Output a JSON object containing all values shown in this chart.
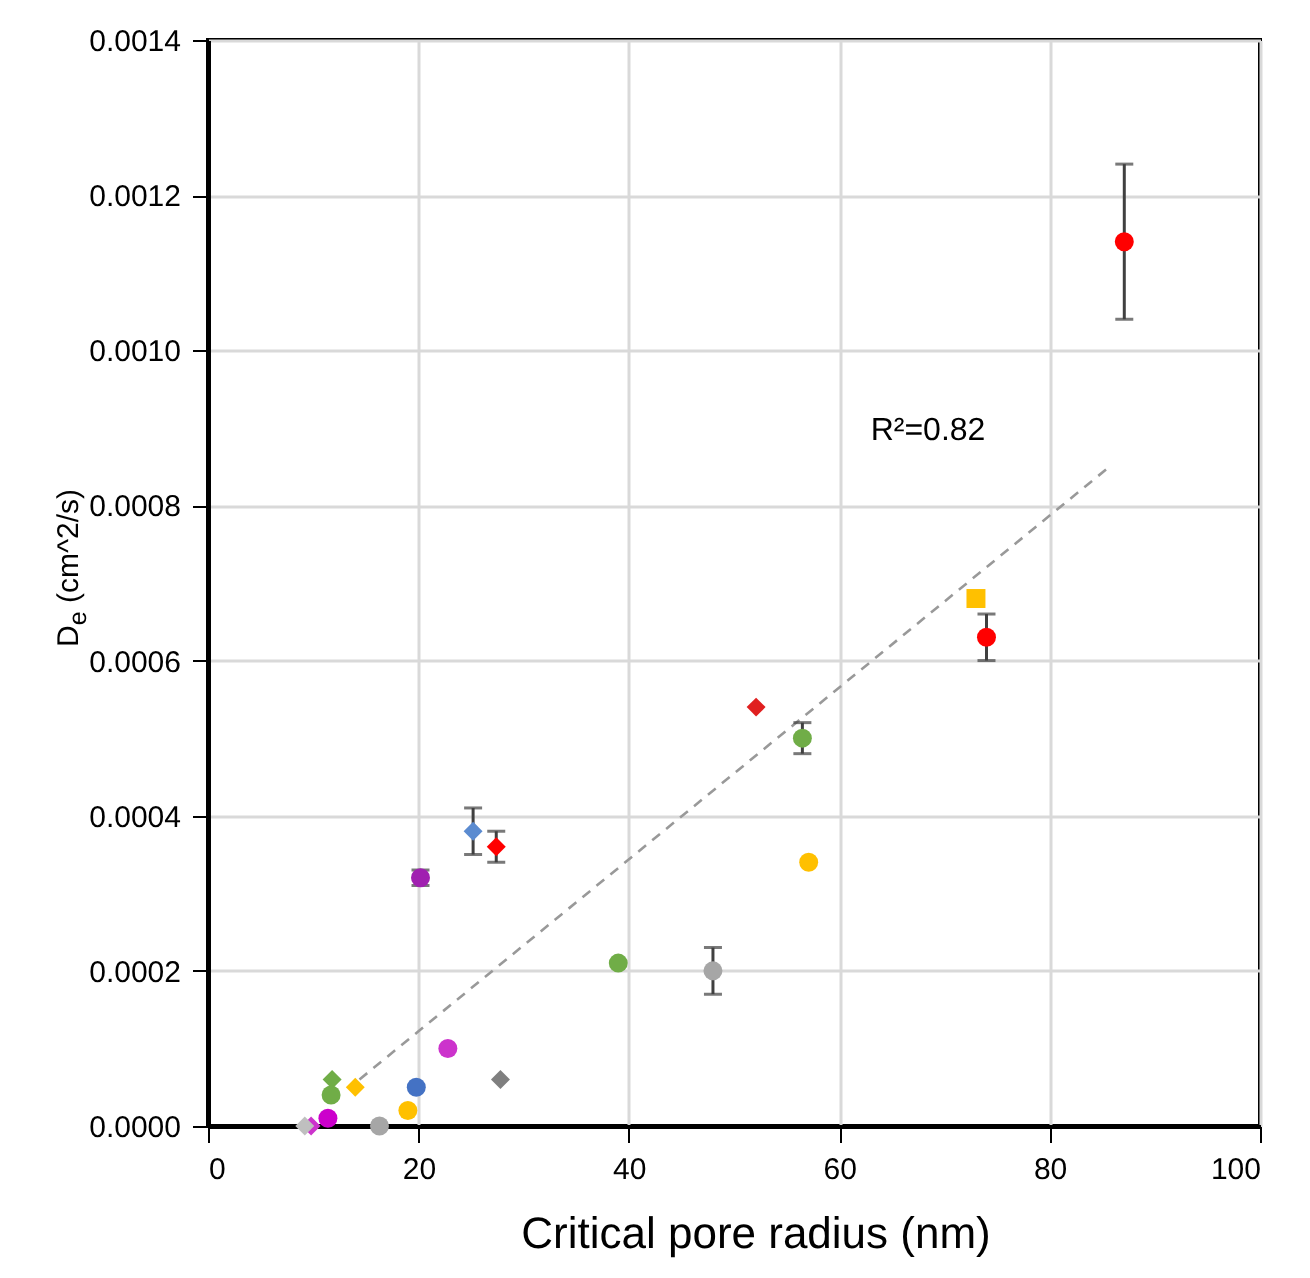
{
  "chart_data": {
    "type": "scatter",
    "xlabel": "Critical pore radius (nm)",
    "ylabel": "D$_{e}$ (cm^2/s)",
    "xlim": [
      0,
      100
    ],
    "xticks": [
      0,
      20,
      40,
      60,
      80,
      100
    ],
    "ylim": [
      0,
      0.0014
    ],
    "yticks": [
      {
        "value": 0,
        "label": "0.0000"
      },
      {
        "value": 0.0002,
        "label": "0.0002"
      },
      {
        "value": 0.0004,
        "label": "0.0004"
      },
      {
        "value": 0.0006,
        "label": "0.0006"
      },
      {
        "value": 0.0008,
        "label": "0.0008"
      },
      {
        "value": 0.001,
        "label": "0.0010"
      },
      {
        "value": 0.0012,
        "label": "0.0012"
      },
      {
        "value": 0.0014,
        "label": "0.0014"
      }
    ],
    "grid": true,
    "annotations": [
      "R²=0.82"
    ],
    "series": [
      {
        "color": "#ff0000",
        "marker": "circle",
        "x": [
          87.1
        ],
        "values": [
          0.00114
        ],
        "errors": [
          0.0001
        ]
      },
      {
        "color": "#ffc000",
        "marker": "square",
        "x": [
          73.0
        ],
        "values": [
          0.00068
        ]
      },
      {
        "color": "#ff0000",
        "marker": "circle",
        "x": [
          74.0
        ],
        "values": [
          0.00063
        ],
        "errors": [
          3e-05
        ]
      },
      {
        "color": "#e02020",
        "marker": "diamond",
        "x": [
          52.1
        ],
        "values": [
          0.00054
        ]
      },
      {
        "color": "#70ad47",
        "marker": "circle",
        "x": [
          56.5
        ],
        "values": [
          0.0005
        ],
        "errors": [
          2e-05
        ]
      },
      {
        "color": "#ffc000",
        "marker": "circle",
        "x": [
          57.1
        ],
        "values": [
          0.00034
        ]
      },
      {
        "color": "#5b8bd0",
        "marker": "diamond",
        "x": [
          25.2
        ],
        "values": [
          0.00038
        ],
        "errors": [
          3e-05
        ]
      },
      {
        "color": "#ff0000",
        "marker": "diamond",
        "x": [
          27.4
        ],
        "values": [
          0.00036
        ],
        "errors": [
          2e-05
        ]
      },
      {
        "color": "#a020b0",
        "marker": "circle",
        "x": [
          20.2
        ],
        "values": [
          0.00032
        ],
        "errors": [
          1e-05
        ]
      },
      {
        "color": "#70ad47",
        "marker": "circle",
        "x": [
          39.0
        ],
        "values": [
          0.00021
        ]
      },
      {
        "color": "#a6a6a6",
        "marker": "circle",
        "x": [
          48.0
        ],
        "values": [
          0.0002
        ],
        "errors": [
          3e-05
        ]
      },
      {
        "color": "#cc33cc",
        "marker": "circle",
        "x": [
          22.8
        ],
        "values": [
          0.0001
        ]
      },
      {
        "color": "#7f7f7f",
        "marker": "diamond",
        "x": [
          27.8
        ],
        "values": [
          6e-05
        ]
      },
      {
        "color": "#4472c4",
        "marker": "circle",
        "x": [
          19.8
        ],
        "values": [
          5e-05
        ]
      },
      {
        "color": "#70ad47",
        "marker": "diamond",
        "x": [
          11.8
        ],
        "values": [
          6e-05
        ]
      },
      {
        "color": "#70ad47",
        "marker": "circle",
        "x": [
          11.7
        ],
        "values": [
          4e-05
        ]
      },
      {
        "color": "#ffc000",
        "marker": "diamond",
        "x": [
          14.0
        ],
        "values": [
          5e-05
        ]
      },
      {
        "color": "#ffc000",
        "marker": "circle",
        "x": [
          19.0
        ],
        "values": [
          2e-05
        ]
      },
      {
        "color": "#a6a6a6",
        "marker": "circle",
        "x": [
          16.3
        ],
        "values": [
          0
        ]
      },
      {
        "color": "#cc00cc",
        "marker": "circle",
        "x": [
          11.4
        ],
        "values": [
          1e-05
        ]
      },
      {
        "color": "#cc33cc",
        "marker": "diamond",
        "x": [
          9.8
        ],
        "values": [
          0
        ]
      },
      {
        "color": "#bfbfbf",
        "marker": "diamond",
        "x": [
          9.2
        ],
        "values": [
          0
        ]
      },
      {
        "type": "line",
        "color": "#999999",
        "line_style": "dashed",
        "marker": "none",
        "x": [
          14.4,
          85.7
        ],
        "values": [
          6e-05,
          0.00085
        ]
      }
    ]
  }
}
